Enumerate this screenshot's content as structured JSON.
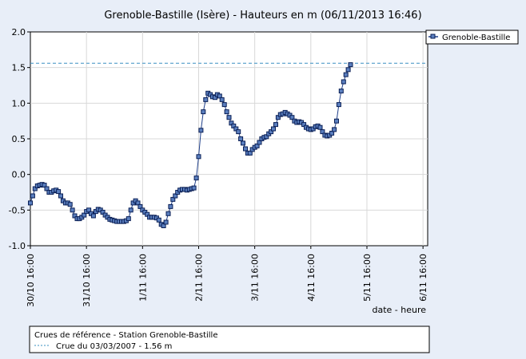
{
  "chart_data": {
    "type": "line",
    "title": "Grenoble-Bastille (Isère) - Hauteurs en m (06/11/2013 16:46)",
    "xlabel": "date - heure",
    "ylabel": "",
    "ylim": [
      -1.0,
      2.0
    ],
    "yticks": [
      "2.0",
      "1.5",
      "1.0",
      "0.5",
      "0.0",
      "-0.5",
      "-1.0"
    ],
    "xlim": [
      0,
      170
    ],
    "xticks": [
      {
        "x": 0,
        "label": "30/10 16:00"
      },
      {
        "x": 24,
        "label": "31/10 16:00"
      },
      {
        "x": 48,
        "label": "1/11 16:00"
      },
      {
        "x": 72,
        "label": "2/11 16:00"
      },
      {
        "x": 96,
        "label": "3/11 16:00"
      },
      {
        "x": 120,
        "label": "4/11 16:00"
      },
      {
        "x": 144,
        "label": "5/11 16:00"
      },
      {
        "x": 168,
        "label": "6/11 16:00"
      }
    ],
    "grid": true,
    "legend": "top-right",
    "series": [
      {
        "name": "Grenoble-Bastille",
        "color": "#1f3f8a",
        "values": [
          [
            0,
            -0.4
          ],
          [
            1,
            -0.3
          ],
          [
            2,
            -0.2
          ],
          [
            3,
            -0.16
          ],
          [
            4,
            -0.15
          ],
          [
            5,
            -0.14
          ],
          [
            6,
            -0.15
          ],
          [
            7,
            -0.2
          ],
          [
            8,
            -0.25
          ],
          [
            9,
            -0.25
          ],
          [
            10,
            -0.23
          ],
          [
            11,
            -0.22
          ],
          [
            12,
            -0.24
          ],
          [
            13,
            -0.3
          ],
          [
            14,
            -0.37
          ],
          [
            15,
            -0.4
          ],
          [
            16,
            -0.4
          ],
          [
            17,
            -0.42
          ],
          [
            18,
            -0.5
          ],
          [
            19,
            -0.58
          ],
          [
            20,
            -0.62
          ],
          [
            21,
            -0.62
          ],
          [
            22,
            -0.6
          ],
          [
            23,
            -0.57
          ],
          [
            24,
            -0.52
          ],
          [
            25,
            -0.5
          ],
          [
            26,
            -0.55
          ],
          [
            27,
            -0.58
          ],
          [
            28,
            -0.52
          ],
          [
            29,
            -0.49
          ],
          [
            30,
            -0.5
          ],
          [
            31,
            -0.53
          ],
          [
            32,
            -0.57
          ],
          [
            33,
            -0.6
          ],
          [
            34,
            -0.63
          ],
          [
            35,
            -0.64
          ],
          [
            36,
            -0.65
          ],
          [
            37,
            -0.66
          ],
          [
            38,
            -0.66
          ],
          [
            39,
            -0.66
          ],
          [
            40,
            -0.66
          ],
          [
            41,
            -0.65
          ],
          [
            42,
            -0.62
          ],
          [
            43,
            -0.5
          ],
          [
            44,
            -0.4
          ],
          [
            45,
            -0.37
          ],
          [
            46,
            -0.4
          ],
          [
            47,
            -0.45
          ],
          [
            48,
            -0.5
          ],
          [
            49,
            -0.53
          ],
          [
            50,
            -0.56
          ],
          [
            51,
            -0.6
          ],
          [
            52,
            -0.6
          ],
          [
            53,
            -0.6
          ],
          [
            54,
            -0.61
          ],
          [
            55,
            -0.64
          ],
          [
            56,
            -0.7
          ],
          [
            57,
            -0.72
          ],
          [
            58,
            -0.67
          ],
          [
            59,
            -0.55
          ],
          [
            60,
            -0.45
          ],
          [
            61,
            -0.35
          ],
          [
            62,
            -0.3
          ],
          [
            63,
            -0.25
          ],
          [
            64,
            -0.22
          ],
          [
            65,
            -0.21
          ],
          [
            66,
            -0.21
          ],
          [
            67,
            -0.22
          ],
          [
            68,
            -0.21
          ],
          [
            69,
            -0.2
          ],
          [
            70,
            -0.19
          ],
          [
            71,
            -0.05
          ],
          [
            72,
            0.25
          ],
          [
            73,
            0.62
          ],
          [
            74,
            0.88
          ],
          [
            75,
            1.05
          ],
          [
            76,
            1.14
          ],
          [
            77,
            1.12
          ],
          [
            78,
            1.09
          ],
          [
            79,
            1.08
          ],
          [
            80,
            1.12
          ],
          [
            81,
            1.1
          ],
          [
            82,
            1.05
          ],
          [
            83,
            0.98
          ],
          [
            84,
            0.88
          ],
          [
            85,
            0.8
          ],
          [
            86,
            0.72
          ],
          [
            87,
            0.68
          ],
          [
            88,
            0.64
          ],
          [
            89,
            0.6
          ],
          [
            90,
            0.5
          ],
          [
            91,
            0.44
          ],
          [
            92,
            0.36
          ],
          [
            93,
            0.3
          ],
          [
            94,
            0.3
          ],
          [
            95,
            0.35
          ],
          [
            96,
            0.38
          ],
          [
            97,
            0.4
          ],
          [
            98,
            0.45
          ],
          [
            99,
            0.5
          ],
          [
            100,
            0.52
          ],
          [
            101,
            0.53
          ],
          [
            102,
            0.57
          ],
          [
            103,
            0.6
          ],
          [
            104,
            0.64
          ],
          [
            105,
            0.7
          ],
          [
            106,
            0.8
          ],
          [
            107,
            0.84
          ],
          [
            108,
            0.85
          ],
          [
            109,
            0.87
          ],
          [
            110,
            0.85
          ],
          [
            111,
            0.83
          ],
          [
            112,
            0.8
          ],
          [
            113,
            0.75
          ],
          [
            114,
            0.73
          ],
          [
            115,
            0.74
          ],
          [
            116,
            0.73
          ],
          [
            117,
            0.7
          ],
          [
            118,
            0.66
          ],
          [
            119,
            0.64
          ],
          [
            120,
            0.63
          ],
          [
            121,
            0.64
          ],
          [
            122,
            0.67
          ],
          [
            123,
            0.68
          ],
          [
            124,
            0.66
          ],
          [
            125,
            0.6
          ],
          [
            126,
            0.55
          ],
          [
            127,
            0.54
          ],
          [
            128,
            0.55
          ],
          [
            129,
            0.58
          ],
          [
            130,
            0.63
          ],
          [
            131,
            0.75
          ],
          [
            132,
            0.98
          ],
          [
            133,
            1.17
          ],
          [
            134,
            1.3
          ],
          [
            135,
            1.4
          ],
          [
            136,
            1.47
          ],
          [
            137,
            1.54
          ]
        ]
      }
    ],
    "reference_line": {
      "y": 1.56,
      "color": "#3a8fc2"
    }
  },
  "reference_box": {
    "title": "Crues de référence - Station Grenoble-Bastille",
    "entry": "Crue du 03/03/2007 - 1.56 m"
  }
}
